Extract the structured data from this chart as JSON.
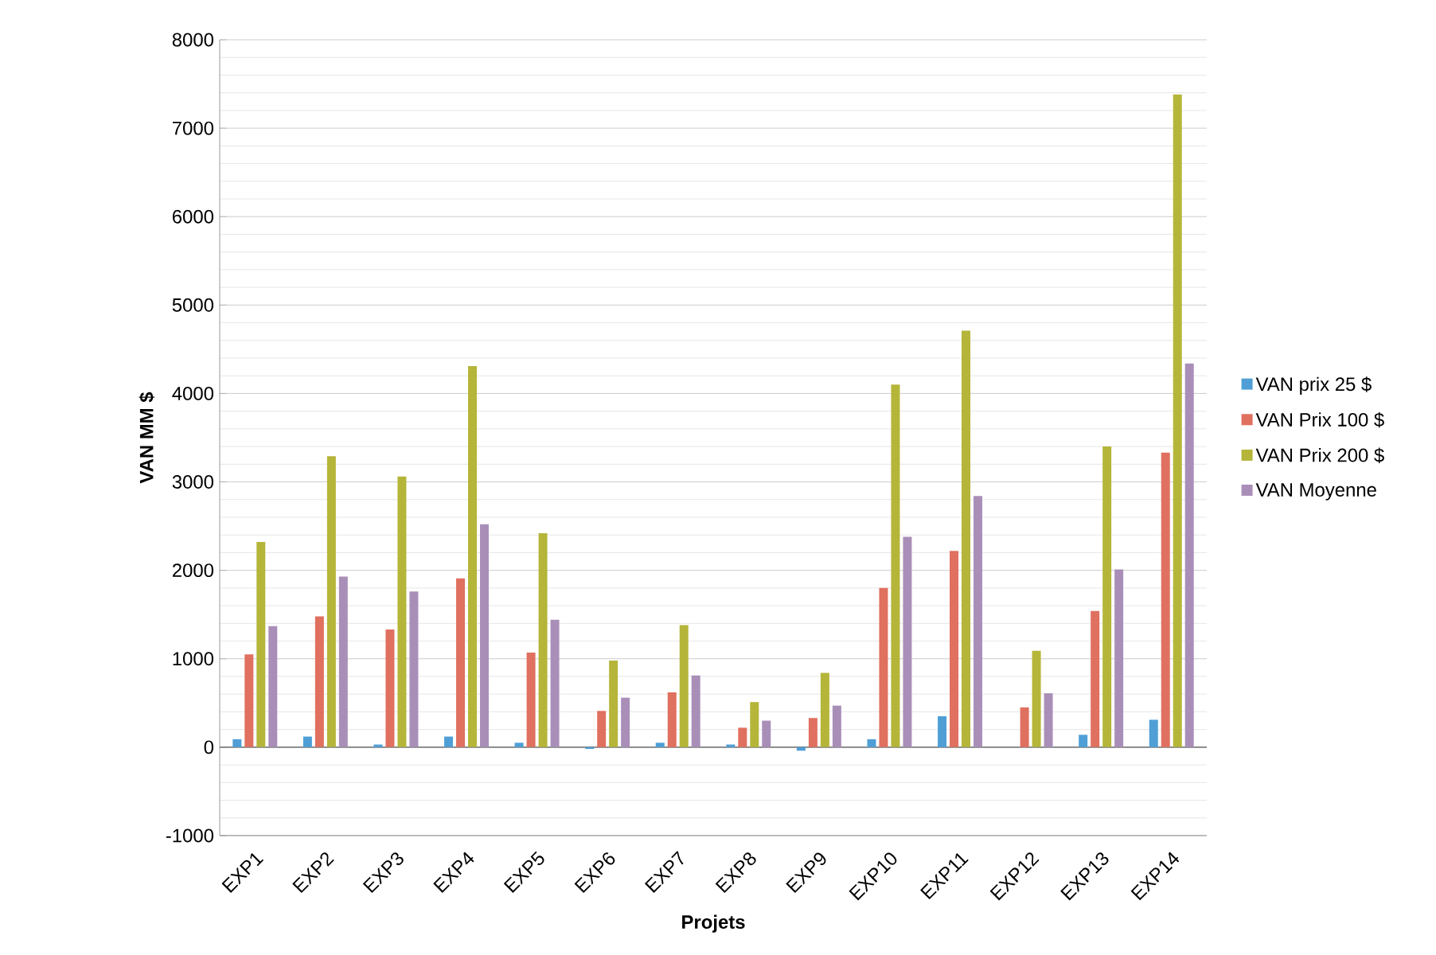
{
  "chart_data": {
    "type": "bar",
    "xlabel": "Projets",
    "ylabel": "VAN MM $",
    "categories": [
      "EXP1",
      "EXP2",
      "EXP3",
      "EXP4",
      "EXP5",
      "EXP6",
      "EXP7",
      "EXP8",
      "EXP9",
      "EXP10",
      "EXP11",
      "EXP12",
      "EXP13",
      "EXP14"
    ],
    "series": [
      {
        "name": "VAN prix 25 $",
        "color": "#4f9fd6",
        "values": [
          90,
          120,
          30,
          120,
          50,
          -20,
          50,
          30,
          -40,
          90,
          350,
          0,
          140,
          310
        ]
      },
      {
        "name": "VAN Prix 100 $",
        "color": "#e0705f",
        "values": [
          1050,
          1480,
          1330,
          1910,
          1070,
          410,
          620,
          220,
          330,
          1800,
          2220,
          450,
          1540,
          3330
        ]
      },
      {
        "name": "VAN Prix 200 $",
        "color": "#b5b53a",
        "values": [
          2320,
          3290,
          3060,
          4310,
          2420,
          980,
          1380,
          510,
          840,
          4100,
          4710,
          1090,
          3400,
          7380
        ]
      },
      {
        "name": "VAN Moyenne",
        "color": "#a98fb8",
        "values": [
          1370,
          1930,
          1760,
          2520,
          1440,
          560,
          810,
          300,
          470,
          2380,
          2840,
          610,
          2010,
          4340
        ]
      }
    ],
    "ylim": [
      -1000,
      8000
    ],
    "yticks": [
      -1000,
      0,
      1000,
      2000,
      3000,
      4000,
      5000,
      6000,
      7000,
      8000
    ],
    "grid": "y",
    "legend": "right"
  }
}
